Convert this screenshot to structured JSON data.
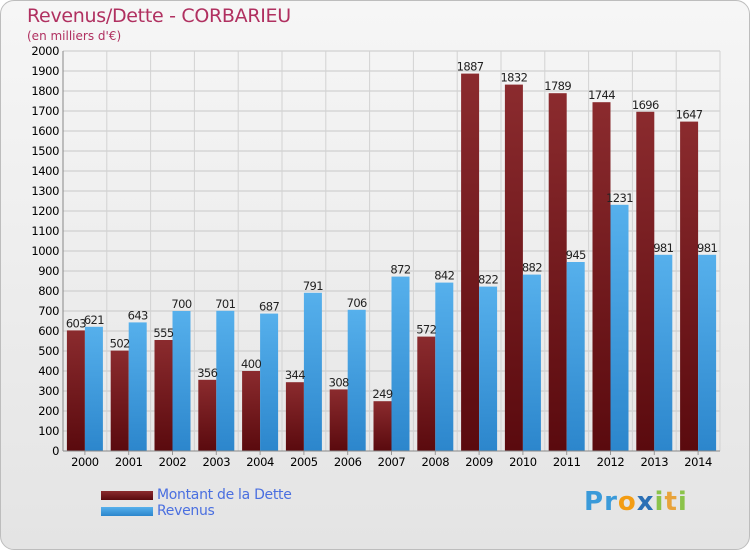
{
  "header": {
    "title": "Revenus/Dette - CORBARIEU",
    "subtitle": "(en milliers d'€)"
  },
  "logo": {
    "text": "Proxiti",
    "letters": [
      {
        "ch": "P",
        "color": "#3a9ad9"
      },
      {
        "ch": "r",
        "color": "#3a9ad9"
      },
      {
        "ch": "o",
        "color": "#f39c12"
      },
      {
        "ch": "x",
        "color": "#2a6fb5"
      },
      {
        "ch": "i",
        "color": "#8bc34a"
      },
      {
        "ch": "t",
        "color": "#e8a33b"
      },
      {
        "ch": "i",
        "color": "#8bc34a"
      }
    ]
  },
  "chart_data": {
    "type": "bar",
    "title": "Revenus/Dette - CORBARIEU",
    "subtitle": "(en milliers d'€)",
    "categories": [
      "2000",
      "2001",
      "2002",
      "2003",
      "2004",
      "2005",
      "2006",
      "2007",
      "2008",
      "2009",
      "2010",
      "2011",
      "2012",
      "2013",
      "2014"
    ],
    "series": [
      {
        "name": "Montant de la Dette",
        "color": "#7a1a1e",
        "values": [
          603,
          502,
          555,
          356,
          400,
          344,
          308,
          249,
          572,
          1887,
          1832,
          1789,
          1744,
          1696,
          1647
        ]
      },
      {
        "name": "Revenus",
        "color": "#3f9ee0",
        "values": [
          621,
          643,
          700,
          701,
          687,
          791,
          706,
          872,
          842,
          822,
          882,
          945,
          1231,
          981,
          981
        ]
      }
    ],
    "ylim": [
      0,
      2000
    ],
    "yticks": [
      0,
      100,
      200,
      300,
      400,
      500,
      600,
      700,
      800,
      900,
      1000,
      1100,
      1200,
      1300,
      1400,
      1500,
      1600,
      1700,
      1800,
      1900,
      2000
    ],
    "grid": true,
    "legend_position": "bottom-left",
    "xlabel": "",
    "ylabel": ""
  }
}
